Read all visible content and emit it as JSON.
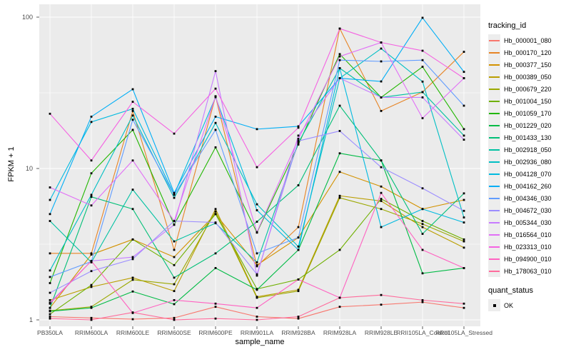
{
  "figure": {
    "y_axis_label": "FPKM + 1",
    "x_axis_label": "sample_name",
    "legend_title": "tracking_id",
    "quant_title": "quant_status",
    "quant_label": "OK"
  },
  "chart_data": {
    "type": "line",
    "title": "",
    "xlabel": "sample_name",
    "ylabel": "FPKM + 1",
    "y_scale": "log10",
    "ylim": [
      1,
      110
    ],
    "y_ticks": [
      1,
      10,
      100
    ],
    "grid": true,
    "panel_bg": "#ebebeb",
    "legend_position": "right",
    "point_legend": {
      "title": "quant_status",
      "label": "OK",
      "color": "#000000"
    },
    "x_categories": [
      "PB350LA",
      "RRIM600LA",
      "RRIM600LE",
      "RRIM600SE",
      "RRIM600PE",
      "RRIM901LA",
      "RRIM928BA",
      "RRIM928LA",
      "RRIM928LE",
      "RRII105LA_Control",
      "RRII105LA_Stressed"
    ],
    "series": [
      {
        "name": "Hb_000001_080",
        "color": "#F8766D",
        "values": [
          1.05,
          1.03,
          1.01,
          1.03,
          1.22,
          1.05,
          1.02,
          1.22,
          1.26,
          1.31,
          1.2
        ]
      },
      {
        "name": "Hb_000170_120",
        "color": "#E78425",
        "values": [
          2.75,
          2.75,
          24.0,
          2.9,
          30.0,
          2.26,
          4.1,
          84.0,
          24.0,
          32.0,
          59.0
        ]
      },
      {
        "name": "Hb_000377_150",
        "color": "#D39200",
        "values": [
          1.2,
          2.7,
          3.4,
          2.6,
          5.0,
          2.3,
          3.5,
          9.5,
          7.6,
          5.4,
          6.2
        ]
      },
      {
        "name": "Hb_000389_050",
        "color": "#BA9E00",
        "values": [
          1.35,
          1.65,
          1.9,
          1.55,
          5.4,
          1.42,
          1.58,
          6.6,
          6.1,
          4.1,
          3.0
        ]
      },
      {
        "name": "Hb_000679_220",
        "color": "#9BA800",
        "values": [
          1.15,
          1.22,
          1.84,
          1.72,
          5.2,
          1.4,
          1.55,
          6.4,
          5.4,
          4.3,
          3.3
        ]
      },
      {
        "name": "Hb_001004_150",
        "color": "#6FB000",
        "values": [
          1.09,
          1.7,
          3.4,
          2.3,
          5.0,
          1.6,
          1.85,
          2.9,
          6.3,
          4.5,
          3.4
        ]
      },
      {
        "name": "Hb_001059_170",
        "color": "#21B700",
        "values": [
          1.75,
          9.3,
          18.0,
          4.25,
          13.8,
          3.77,
          14.4,
          57.0,
          29.5,
          47.0,
          18.2
        ]
      },
      {
        "name": "Hb_001229_020",
        "color": "#00BB45",
        "values": [
          1.14,
          1.2,
          1.54,
          1.27,
          2.2,
          1.58,
          2.9,
          12.6,
          11.3,
          2.03,
          2.2
        ]
      },
      {
        "name": "Hb_001433_130",
        "color": "#00BF77",
        "values": [
          1.2,
          6.5,
          5.4,
          1.9,
          2.75,
          4.45,
          7.75,
          26.0,
          11.3,
          3.7,
          6.85
        ]
      },
      {
        "name": "Hb_002918_050",
        "color": "#00C1A2",
        "values": [
          4.5,
          2.4,
          7.25,
          3.3,
          4.35,
          2.4,
          14.8,
          46.0,
          29.5,
          32.0,
          16.5
        ]
      },
      {
        "name": "Hb_002936_080",
        "color": "#00BFC4",
        "values": [
          2.12,
          6.7,
          22.4,
          6.4,
          20.0,
          5.8,
          3.05,
          39.5,
          62.0,
          37.5,
          4.75
        ]
      },
      {
        "name": "Hb_004128_070",
        "color": "#00BAE0",
        "values": [
          6.2,
          20.3,
          24.8,
          6.73,
          29.6,
          5.3,
          2.9,
          46.0,
          4.1,
          5.4,
          4.4
        ]
      },
      {
        "name": "Hb_004162_260",
        "color": "#00AEF6",
        "values": [
          5.0,
          22.0,
          33.4,
          6.9,
          22.0,
          18.2,
          19.0,
          39.5,
          37.6,
          99.0,
          43.5
        ]
      },
      {
        "name": "Hb_004346_030",
        "color": "#619CFF",
        "values": [
          1.92,
          2.43,
          21.0,
          6.7,
          18.0,
          2.75,
          3.5,
          52.0,
          51.0,
          52.0,
          26.0
        ]
      },
      {
        "name": "Hb_004672_030",
        "color": "#9C8DFF",
        "values": [
          1.51,
          2.1,
          2.52,
          4.5,
          4.4,
          2.0,
          15.2,
          17.7,
          10.2,
          7.4,
          5.25
        ]
      },
      {
        "name": "Hb_005344_030",
        "color": "#C77CFF",
        "values": [
          1.3,
          2.45,
          2.6,
          4.25,
          44.0,
          1.96,
          16.5,
          39.5,
          29.5,
          29.5,
          15.5
        ]
      },
      {
        "name": "Hb_016564_010",
        "color": "#E16FF6",
        "values": [
          7.5,
          5.7,
          11.3,
          4.5,
          30.0,
          3.8,
          15.7,
          55.0,
          68.0,
          21.5,
          39.5
        ]
      },
      {
        "name": "Hb_023313_010",
        "color": "#F562E2",
        "values": [
          23.0,
          11.3,
          27.6,
          17.0,
          33.7,
          10.2,
          18.6,
          84.0,
          68.0,
          60.0,
          39.5
        ]
      },
      {
        "name": "Hb_094900_010",
        "color": "#FF62C1",
        "values": [
          1.28,
          2.45,
          1.11,
          1.35,
          1.28,
          1.2,
          1.85,
          1.4,
          6.9,
          2.9,
          2.2
        ]
      },
      {
        "name": "Hb_178063_010",
        "color": "#FF6B9C",
        "values": [
          1.02,
          1.0,
          1.12,
          1.0,
          1.02,
          1.0,
          1.05,
          1.4,
          1.46,
          1.35,
          1.28
        ]
      }
    ]
  }
}
